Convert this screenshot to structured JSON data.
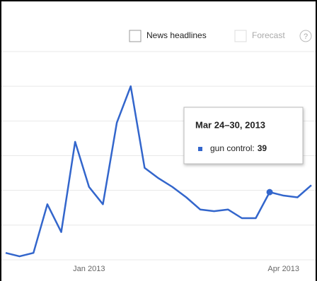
{
  "controls": {
    "news_headlines": "News headlines",
    "forecast": "Forecast",
    "help": "?"
  },
  "chart_data": {
    "type": "line",
    "categories": [
      null,
      null,
      null,
      null,
      null,
      null,
      "Jan 2013",
      null,
      null,
      null,
      null,
      null,
      null,
      null,
      null,
      null,
      null,
      null,
      null,
      null,
      "Apr 2013",
      null,
      null
    ],
    "series": [
      {
        "name": "gun control",
        "color": "#3366cc",
        "values": [
          4,
          2,
          4,
          32,
          16,
          68,
          42,
          32,
          79,
          100,
          53,
          47,
          42,
          36,
          29,
          28,
          29,
          24,
          24,
          39,
          37,
          36,
          43
        ]
      }
    ],
    "ylim": [
      0,
      120
    ],
    "yticks": [
      0,
      20,
      40,
      60,
      80,
      100,
      120
    ],
    "grid": true,
    "tooltip": {
      "title": "Mar 24–30, 2013",
      "colon": ":"
    }
  }
}
